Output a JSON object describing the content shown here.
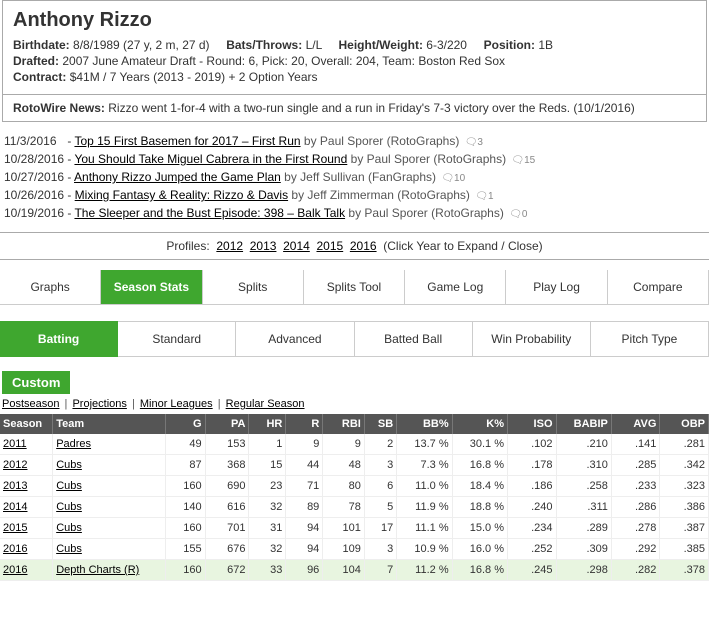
{
  "player": {
    "name": "Anthony Rizzo",
    "bio": {
      "birthdate_label": "Birthdate:",
      "birthdate": "8/8/1989 (27 y, 2 m, 27 d)",
      "bats_label": "Bats/Throws:",
      "bats": "L/L",
      "hw_label": "Height/Weight:",
      "hw": "6-3/220",
      "pos_label": "Position:",
      "pos": "1B",
      "drafted_label": "Drafted:",
      "drafted": "2007 June Amateur Draft - Round: 6, Pick: 20, Overall: 204, Team: Boston Red Sox",
      "contract_label": "Contract:",
      "contract": "$41M / 7 Years (2013 - 2019) + 2 Option Years"
    },
    "news": {
      "label": "RotoWire News:",
      "text": "Rizzo went 1-for-4 with a two-run single and a run in Friday's 7-3 victory over the Reds. (10/1/2016)"
    }
  },
  "articles": [
    {
      "date": "11/3/2016",
      "title": "Top 15 First Basemen for 2017 – First Run",
      "by": "by Paul Sporer",
      "src": "(RotoGraphs)",
      "comments": "3"
    },
    {
      "date": "10/28/2016",
      "title": "You Should Take Miguel Cabrera in the First Round",
      "by": "by Paul Sporer",
      "src": "(RotoGraphs)",
      "comments": "15"
    },
    {
      "date": "10/27/2016",
      "title": "Anthony Rizzo Jumped the Game Plan",
      "by": "by Jeff Sullivan",
      "src": "(FanGraphs)",
      "comments": "10"
    },
    {
      "date": "10/26/2016",
      "title": "Mixing Fantasy & Reality: Rizzo & Davis",
      "by": "by Jeff Zimmerman",
      "src": "(RotoGraphs)",
      "comments": "1"
    },
    {
      "date": "10/19/2016",
      "title": "The Sleeper and the Bust Episode: 398 – Balk Talk",
      "by": "by Paul Sporer",
      "src": "(RotoGraphs)",
      "comments": "0"
    }
  ],
  "profiles": {
    "label": "Profiles:",
    "years": [
      "2012",
      "2013",
      "2014",
      "2015",
      "2016"
    ],
    "hint": "(Click Year to Expand / Close)"
  },
  "tabs": [
    "Graphs",
    "Season Stats",
    "Splits",
    "Splits Tool",
    "Game Log",
    "Play Log",
    "Compare"
  ],
  "active_tab": "Season Stats",
  "subtabs": [
    "Batting",
    "Standard",
    "Advanced",
    "Batted Ball",
    "Win Probability",
    "Pitch Type"
  ],
  "active_subtab": "Batting",
  "section": "Custom",
  "filters": [
    "Postseason",
    "Projections",
    "Minor Leagues",
    "Regular Season"
  ],
  "table": {
    "columns": [
      "Season",
      "Team",
      "G",
      "PA",
      "HR",
      "R",
      "RBI",
      "SB",
      "BB%",
      "K%",
      "ISO",
      "BABIP",
      "AVG",
      "OBP"
    ],
    "rows": [
      {
        "hl": false,
        "season": "2011",
        "team": "Padres",
        "g": "49",
        "pa": "153",
        "hr": "1",
        "r": "9",
        "rbi": "9",
        "sb": "2",
        "bb": "13.7 %",
        "k": "30.1 %",
        "iso": ".102",
        "babip": ".210",
        "avg": ".141",
        "obp": ".281"
      },
      {
        "hl": false,
        "season": "2012",
        "team": "Cubs",
        "g": "87",
        "pa": "368",
        "hr": "15",
        "r": "44",
        "rbi": "48",
        "sb": "3",
        "bb": "7.3 %",
        "k": "16.8 %",
        "iso": ".178",
        "babip": ".310",
        "avg": ".285",
        "obp": ".342"
      },
      {
        "hl": false,
        "season": "2013",
        "team": "Cubs",
        "g": "160",
        "pa": "690",
        "hr": "23",
        "r": "71",
        "rbi": "80",
        "sb": "6",
        "bb": "11.0 %",
        "k": "18.4 %",
        "iso": ".186",
        "babip": ".258",
        "avg": ".233",
        "obp": ".323"
      },
      {
        "hl": false,
        "season": "2014",
        "team": "Cubs",
        "g": "140",
        "pa": "616",
        "hr": "32",
        "r": "89",
        "rbi": "78",
        "sb": "5",
        "bb": "11.9 %",
        "k": "18.8 %",
        "iso": ".240",
        "babip": ".311",
        "avg": ".286",
        "obp": ".386"
      },
      {
        "hl": false,
        "season": "2015",
        "team": "Cubs",
        "g": "160",
        "pa": "701",
        "hr": "31",
        "r": "94",
        "rbi": "101",
        "sb": "17",
        "bb": "11.1 %",
        "k": "15.0 %",
        "iso": ".234",
        "babip": ".289",
        "avg": ".278",
        "obp": ".387"
      },
      {
        "hl": false,
        "season": "2016",
        "team": "Cubs",
        "g": "155",
        "pa": "676",
        "hr": "32",
        "r": "94",
        "rbi": "109",
        "sb": "3",
        "bb": "10.9 %",
        "k": "16.0 %",
        "iso": ".252",
        "babip": ".309",
        "avg": ".292",
        "obp": ".385"
      },
      {
        "hl": true,
        "season": "2016",
        "team": "Depth Charts (R)",
        "g": "160",
        "pa": "672",
        "hr": "33",
        "r": "96",
        "rbi": "104",
        "sb": "7",
        "bb": "11.2 %",
        "k": "16.8 %",
        "iso": ".245",
        "babip": ".298",
        "avg": ".282",
        "obp": ".378"
      }
    ]
  }
}
